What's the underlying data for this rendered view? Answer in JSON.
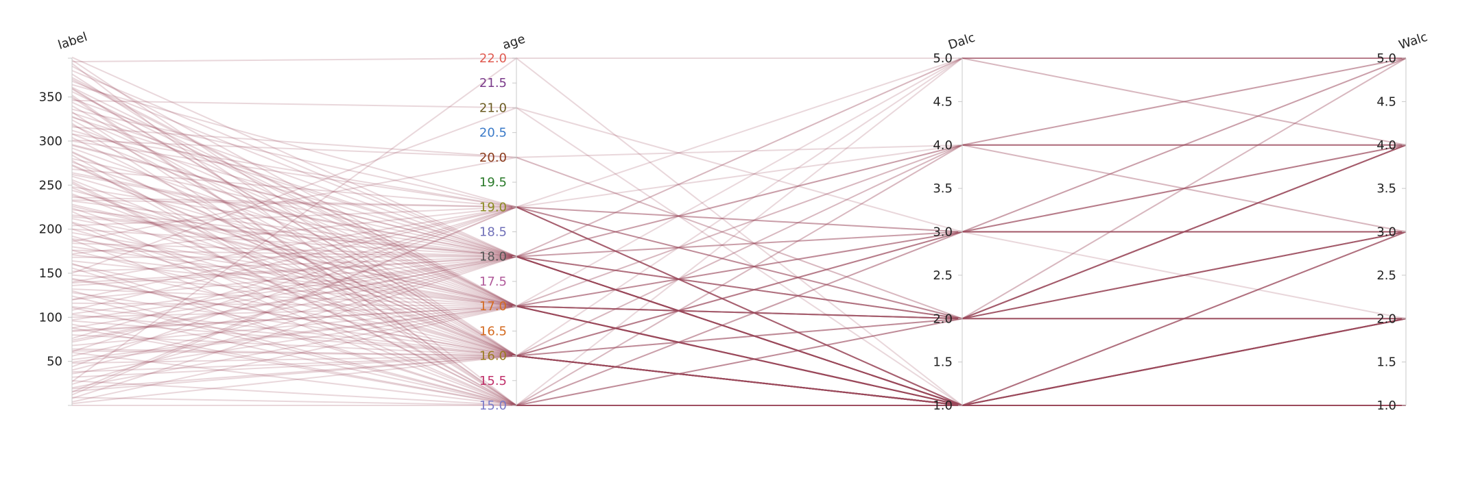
{
  "chart_data": {
    "type": "parallel_coordinates",
    "line_color": "#9b4a5c",
    "axes": [
      {
        "name": "label",
        "range": [
          0,
          394
        ],
        "ticks": [
          {
            "value": 50,
            "label": "50"
          },
          {
            "value": 100,
            "label": "100"
          },
          {
            "value": 150,
            "label": "150"
          },
          {
            "value": 200,
            "label": "200"
          },
          {
            "value": 250,
            "label": "250"
          },
          {
            "value": 300,
            "label": "300"
          },
          {
            "value": 350,
            "label": "350"
          }
        ],
        "tick_color": "#222222"
      },
      {
        "name": "age",
        "range": [
          15,
          22
        ],
        "ticks": [
          {
            "value": 15.0,
            "label": "15.0",
            "color": "#7a7ac8"
          },
          {
            "value": 15.5,
            "label": "15.5",
            "color": "#c0306a"
          },
          {
            "value": 16.0,
            "label": "16.0",
            "color": "#9a7a20"
          },
          {
            "value": 16.5,
            "label": "16.5",
            "color": "#d46a20"
          },
          {
            "value": 17.0,
            "label": "17.0",
            "color": "#d46a20"
          },
          {
            "value": 17.5,
            "label": "17.5",
            "color": "#b05a9a"
          },
          {
            "value": 18.0,
            "label": "18.0",
            "color": "#555555"
          },
          {
            "value": 18.5,
            "label": "18.5",
            "color": "#7070b8"
          },
          {
            "value": 19.0,
            "label": "19.0",
            "color": "#8a8a20"
          },
          {
            "value": 19.5,
            "label": "19.5",
            "color": "#2a7a2a"
          },
          {
            "value": 20.0,
            "label": "20.0",
            "color": "#8a3a1a"
          },
          {
            "value": 20.5,
            "label": "20.5",
            "color": "#3a7ac8"
          },
          {
            "value": 21.0,
            "label": "21.0",
            "color": "#6a5a20"
          },
          {
            "value": 21.5,
            "label": "21.5",
            "color": "#7a3a8a"
          },
          {
            "value": 22.0,
            "label": "22.0",
            "color": "#e05a50"
          }
        ]
      },
      {
        "name": "Dalc",
        "range": [
          1,
          5
        ],
        "ticks": [
          {
            "value": 1.0,
            "label": "1.0"
          },
          {
            "value": 1.5,
            "label": "1.5"
          },
          {
            "value": 2.0,
            "label": "2.0"
          },
          {
            "value": 2.5,
            "label": "2.5"
          },
          {
            "value": 3.0,
            "label": "3.0"
          },
          {
            "value": 3.5,
            "label": "3.5"
          },
          {
            "value": 4.0,
            "label": "4.0"
          },
          {
            "value": 4.5,
            "label": "4.5"
          },
          {
            "value": 5.0,
            "label": "5.0"
          }
        ],
        "tick_color": "#222222"
      },
      {
        "name": "Walc",
        "range": [
          1,
          5
        ],
        "ticks": [
          {
            "value": 1.0,
            "label": "1.0"
          },
          {
            "value": 1.5,
            "label": "1.5"
          },
          {
            "value": 2.0,
            "label": "2.0"
          },
          {
            "value": 2.5,
            "label": "2.5"
          },
          {
            "value": 3.0,
            "label": "3.0"
          },
          {
            "value": 3.5,
            "label": "3.5"
          },
          {
            "value": 4.0,
            "label": "4.0"
          },
          {
            "value": 4.5,
            "label": "4.5"
          },
          {
            "value": 5.0,
            "label": "5.0"
          }
        ],
        "tick_color": "#222222"
      }
    ],
    "records": [
      [
        392,
        16,
        1,
        1
      ],
      [
        388,
        15,
        1,
        1
      ],
      [
        385,
        17,
        1,
        2
      ],
      [
        380,
        18,
        2,
        3
      ],
      [
        376,
        16,
        1,
        1
      ],
      [
        372,
        17,
        1,
        1
      ],
      [
        368,
        18,
        1,
        3
      ],
      [
        364,
        19,
        1,
        2
      ],
      [
        360,
        16,
        1,
        1
      ],
      [
        356,
        17,
        2,
        2
      ],
      [
        352,
        15,
        1,
        1
      ],
      [
        348,
        18,
        1,
        1
      ],
      [
        344,
        17,
        1,
        3
      ],
      [
        340,
        16,
        1,
        2
      ],
      [
        336,
        19,
        2,
        4
      ],
      [
        332,
        18,
        1,
        1
      ],
      [
        328,
        17,
        1,
        1
      ],
      [
        324,
        16,
        1,
        1
      ],
      [
        320,
        15,
        1,
        1
      ],
      [
        316,
        20,
        2,
        4
      ],
      [
        312,
        18,
        3,
        3
      ],
      [
        308,
        17,
        1,
        2
      ],
      [
        304,
        16,
        1,
        1
      ],
      [
        300,
        19,
        1,
        1
      ],
      [
        296,
        18,
        1,
        2
      ],
      [
        292,
        17,
        2,
        3
      ],
      [
        288,
        16,
        1,
        1
      ],
      [
        284,
        15,
        1,
        1
      ],
      [
        280,
        18,
        1,
        1
      ],
      [
        276,
        17,
        1,
        2
      ],
      [
        272,
        16,
        1,
        1
      ],
      [
        268,
        19,
        3,
        4
      ],
      [
        264,
        18,
        1,
        1
      ],
      [
        260,
        17,
        1,
        1
      ],
      [
        256,
        16,
        2,
        3
      ],
      [
        252,
        15,
        1,
        1
      ],
      [
        248,
        18,
        1,
        2
      ],
      [
        244,
        17,
        1,
        1
      ],
      [
        240,
        16,
        1,
        1
      ],
      [
        236,
        19,
        1,
        3
      ],
      [
        232,
        18,
        2,
        2
      ],
      [
        228,
        17,
        1,
        1
      ],
      [
        224,
        16,
        1,
        1
      ],
      [
        220,
        15,
        1,
        2
      ],
      [
        216,
        18,
        1,
        1
      ],
      [
        212,
        17,
        3,
        5
      ],
      [
        208,
        16,
        1,
        1
      ],
      [
        204,
        19,
        1,
        2
      ],
      [
        200,
        18,
        1,
        1
      ],
      [
        196,
        17,
        2,
        4
      ],
      [
        192,
        16,
        1,
        1
      ],
      [
        188,
        15,
        1,
        1
      ],
      [
        184,
        18,
        1,
        3
      ],
      [
        180,
        17,
        1,
        1
      ],
      [
        176,
        16,
        1,
        2
      ],
      [
        172,
        19,
        2,
        3
      ],
      [
        168,
        18,
        1,
        1
      ],
      [
        164,
        17,
        1,
        1
      ],
      [
        160,
        16,
        1,
        1
      ],
      [
        156,
        15,
        1,
        1
      ],
      [
        152,
        18,
        1,
        2
      ],
      [
        148,
        17,
        2,
        2
      ],
      [
        144,
        16,
        1,
        1
      ],
      [
        140,
        19,
        1,
        1
      ],
      [
        136,
        18,
        1,
        3
      ],
      [
        132,
        17,
        1,
        1
      ],
      [
        128,
        16,
        3,
        3
      ],
      [
        124,
        15,
        1,
        1
      ],
      [
        120,
        18,
        1,
        2
      ],
      [
        116,
        17,
        1,
        1
      ],
      [
        112,
        16,
        1,
        1
      ],
      [
        108,
        19,
        2,
        4
      ],
      [
        104,
        18,
        1,
        1
      ],
      [
        100,
        17,
        1,
        2
      ],
      [
        96,
        16,
        1,
        1
      ],
      [
        92,
        15,
        1,
        1
      ],
      [
        88,
        18,
        1,
        1
      ],
      [
        84,
        17,
        2,
        3
      ],
      [
        80,
        16,
        1,
        1
      ],
      [
        76,
        19,
        1,
        2
      ],
      [
        72,
        18,
        1,
        1
      ],
      [
        68,
        17,
        1,
        1
      ],
      [
        64,
        16,
        1,
        3
      ],
      [
        60,
        15,
        1,
        1
      ],
      [
        56,
        18,
        2,
        2
      ],
      [
        52,
        17,
        1,
        1
      ],
      [
        48,
        16,
        1,
        1
      ],
      [
        44,
        19,
        1,
        2
      ],
      [
        40,
        18,
        1,
        1
      ],
      [
        36,
        17,
        1,
        1
      ],
      [
        32,
        16,
        1,
        2
      ],
      [
        28,
        15,
        1,
        1
      ],
      [
        24,
        18,
        1,
        1
      ],
      [
        20,
        17,
        2,
        4
      ],
      [
        16,
        16,
        1,
        1
      ],
      [
        12,
        19,
        1,
        1
      ],
      [
        8,
        18,
        1,
        2
      ],
      [
        4,
        17,
        1,
        1
      ],
      [
        2,
        16,
        1,
        1
      ],
      [
        0,
        15,
        1,
        1
      ],
      [
        390,
        22,
        1,
        2
      ],
      [
        150,
        21,
        3,
        3
      ],
      [
        301,
        20,
        2,
        2
      ],
      [
        27,
        22,
        5,
        5
      ],
      [
        186,
        20,
        4,
        4
      ],
      [
        346,
        21,
        1,
        1
      ],
      [
        61,
        19,
        5,
        5
      ],
      [
        222,
        18,
        4,
        4
      ],
      [
        318,
        17,
        5,
        4
      ],
      [
        103,
        16,
        4,
        5
      ],
      [
        278,
        15,
        4,
        4
      ],
      [
        171,
        17,
        3,
        5
      ],
      [
        359,
        16,
        5,
        5
      ],
      [
        207,
        15,
        5,
        5
      ],
      [
        139,
        18,
        5,
        4
      ],
      [
        247,
        16,
        3,
        4
      ],
      [
        85,
        17,
        4,
        3
      ],
      [
        327,
        18,
        4,
        5
      ],
      [
        19,
        16,
        3,
        5
      ],
      [
        233,
        19,
        4,
        4
      ],
      [
        161,
        15,
        3,
        4
      ],
      [
        395,
        18,
        2,
        5
      ],
      [
        111,
        15,
        2,
        4
      ],
      [
        273,
        16,
        2,
        5
      ],
      [
        49,
        17,
        2,
        3
      ],
      [
        214,
        18,
        3,
        2
      ],
      [
        308,
        19,
        3,
        3
      ],
      [
        143,
        16,
        4,
        4
      ],
      [
        361,
        17,
        3,
        3
      ],
      [
        97,
        18,
        5,
        5
      ],
      [
        254,
        15,
        2,
        3
      ],
      [
        38,
        16,
        2,
        2
      ],
      [
        189,
        17,
        3,
        4
      ],
      [
        333,
        15,
        3,
        3
      ],
      [
        74,
        18,
        4,
        3
      ],
      [
        226,
        17,
        2,
        4
      ],
      [
        120,
        19,
        2,
        2
      ],
      [
        287,
        16,
        3,
        3
      ],
      [
        9,
        15,
        2,
        3
      ],
      [
        176,
        18,
        2,
        4
      ],
      [
        350,
        15,
        4,
        5
      ],
      [
        62,
        16,
        3,
        3
      ],
      [
        238,
        17,
        4,
        4
      ],
      [
        130,
        15,
        2,
        2
      ],
      [
        295,
        18,
        2,
        2
      ],
      [
        15,
        19,
        3,
        3
      ],
      [
        200,
        16,
        2,
        3
      ],
      [
        370,
        17,
        2,
        4
      ],
      [
        88,
        15,
        3,
        4
      ],
      [
        262,
        18,
        3,
        3
      ]
    ]
  }
}
